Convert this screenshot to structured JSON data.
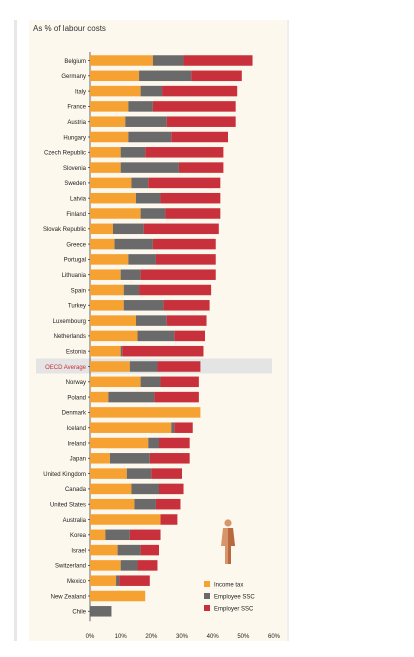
{
  "colors": {
    "income_tax": "#f5a233",
    "employee_ssc": "#6a6a6a",
    "employer_ssc": "#c8303b",
    "highlight_row_bg": "#e4e4e4",
    "highlight_label": "#c8303b",
    "panel_bg": "#fdf8ee"
  },
  "icon": "person-figure-icon",
  "chart_data": {
    "type": "bar",
    "orientation": "horizontal",
    "stacked": true,
    "subtitle": "As % of labour costs",
    "xlim": [
      0,
      60
    ],
    "x_ticks": [
      "0%",
      "10%",
      "20%",
      "30%",
      "40%",
      "50%",
      "60%"
    ],
    "legend_position": "bottom-right",
    "highlight": "OECD Average",
    "categories": [
      "Belgium",
      "Germany",
      "Italy",
      "France",
      "Austria",
      "Hungary",
      "Czech Republic",
      "Slovenia",
      "Sweden",
      "Latvia",
      "Finland",
      "Slovak Republic",
      "Greece",
      "Portugal",
      "Lithuania",
      "Spain",
      "Turkey",
      "Luxembourg",
      "Netherlands",
      "Estonia",
      "OECD Average",
      "Norway",
      "Poland",
      "Denmark",
      "Iceland",
      "Ireland",
      "Japan",
      "United Kingdom",
      "Canada",
      "United States",
      "Australia",
      "Korea",
      "Israel",
      "Switzerland",
      "Mexico",
      "New Zealand",
      "Chile"
    ],
    "series": [
      {
        "name": "Income tax",
        "values": [
          20.5,
          16,
          16.5,
          12.5,
          11.5,
          12.5,
          10,
          10,
          13.5,
          15,
          16.5,
          7.5,
          8,
          12.5,
          10,
          11,
          11,
          15,
          15.5,
          10,
          13,
          16.5,
          6,
          36,
          26.5,
          19,
          6.5,
          12,
          13.5,
          14.5,
          23,
          5,
          9,
          10,
          8.5,
          18,
          0
        ]
      },
      {
        "name": "Employee SSC",
        "values": [
          10,
          17,
          7,
          8,
          13.5,
          14,
          8,
          19,
          5.5,
          8,
          8,
          10,
          12.5,
          9,
          6.5,
          5,
          13,
          10,
          12,
          0.5,
          9,
          6.5,
          15,
          0,
          1,
          3.5,
          13,
          8,
          9,
          7,
          0,
          8,
          7.5,
          5.5,
          1,
          0,
          7
        ]
      },
      {
        "name": "Employer SSC",
        "values": [
          22.5,
          16.5,
          24.5,
          27,
          22.5,
          18.5,
          25.5,
          14.5,
          23.5,
          19.5,
          18,
          24.5,
          20.5,
          19.5,
          24.5,
          23.5,
          15,
          13,
          10,
          26.5,
          14,
          12.5,
          14.5,
          0,
          6,
          10,
          13,
          10,
          8,
          8,
          5.5,
          10,
          6,
          6.5,
          10,
          0,
          0
        ]
      }
    ]
  }
}
